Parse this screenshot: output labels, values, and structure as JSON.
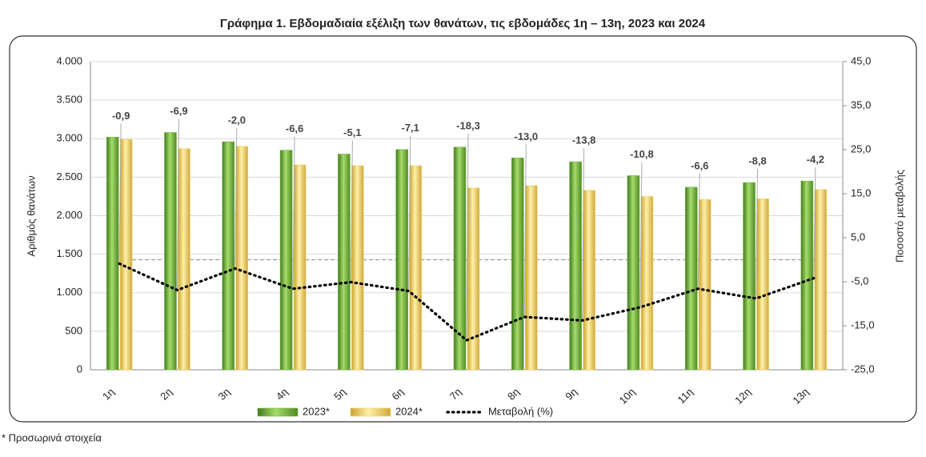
{
  "chart_data": {
    "type": "bar_line",
    "title": "Γράφημα 1.  Εβδομαδιαία εξέλιξη των θανάτων, τις εβδομάδες 1η – 13η, 2023 και 2024",
    "y_label": "Αριθμός θανάτων",
    "y2_label": "Ποσοστό μεταβολής",
    "footnote": "* Προσωρινά στοιχεία",
    "categories": [
      "1η",
      "2η",
      "3η",
      "4η",
      "5η",
      "6η",
      "7η",
      "8η",
      "9η",
      "10η",
      "11η",
      "12η",
      "13η"
    ],
    "series": [
      {
        "name": "2023*",
        "type": "bar",
        "color": "#7ab648",
        "values": [
          3020,
          3080,
          2960,
          2850,
          2800,
          2860,
          2890,
          2750,
          2700,
          2520,
          2370,
          2430,
          2450
        ]
      },
      {
        "name": "2024*",
        "type": "bar",
        "color": "#f2d46b",
        "values": [
          2990,
          2870,
          2900,
          2660,
          2650,
          2650,
          2360,
          2390,
          2330,
          2250,
          2210,
          2220,
          2340
        ]
      },
      {
        "name": "Μεταβολή (%)",
        "type": "line",
        "axis": "y2",
        "color": "#000000",
        "values": [
          -0.9,
          -6.9,
          -2.0,
          -6.6,
          -5.1,
          -7.1,
          -18.3,
          -13.0,
          -13.8,
          -10.8,
          -6.6,
          -8.8,
          -4.2
        ],
        "value_labels": [
          "-0,9",
          "-6,9",
          "-2,0",
          "-6,6",
          "-5,1",
          "-7,1",
          "-18,3",
          "-13,0",
          "-13,8",
          "-10,8",
          "-6,6",
          "-8,8",
          "-4,2"
        ]
      }
    ],
    "ylim": [
      0,
      4000
    ],
    "yticks": [
      0,
      500,
      {
        "value": 1000,
        "label": "1.000"
      },
      {
        "value": 1500,
        "label": "1.500"
      },
      {
        "value": 2000,
        "label": "2.000"
      },
      {
        "value": 2500,
        "label": "2.500"
      },
      {
        "value": 3000,
        "label": "3.000"
      },
      {
        "value": 3500,
        "label": "3.500"
      },
      {
        "value": 4000,
        "label": "4.000"
      }
    ],
    "y2lim": [
      -25,
      45
    ],
    "y2ticks": [
      {
        "value": -25,
        "label": "-25,0"
      },
      {
        "value": -15,
        "label": "-15,0"
      },
      {
        "value": -5,
        "label": "-5,0"
      },
      {
        "value": 5,
        "label": "5,0"
      },
      {
        "value": 15,
        "label": "15,0"
      },
      {
        "value": 25,
        "label": "25,0"
      },
      {
        "value": 35,
        "label": "35,0"
      },
      {
        "value": 45,
        "label": "45,0"
      }
    ],
    "grid": true
  }
}
